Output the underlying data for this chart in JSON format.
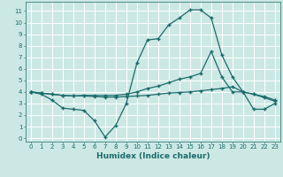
{
  "xlabel": "Humidex (Indice chaleur)",
  "bg_color": "#cce8e4",
  "grid_color": "#ffffff",
  "line_color": "#1a6b6b",
  "x_ticks": [
    0,
    1,
    2,
    3,
    4,
    5,
    6,
    7,
    8,
    9,
    10,
    11,
    12,
    13,
    14,
    15,
    16,
    17,
    18,
    19,
    20,
    21,
    22,
    23
  ],
  "y_ticks": [
    0,
    1,
    2,
    3,
    4,
    5,
    6,
    7,
    8,
    9,
    10,
    11
  ],
  "xlim": [
    -0.5,
    23.5
  ],
  "ylim": [
    -0.3,
    11.8
  ],
  "line1_x": [
    0,
    1,
    2,
    3,
    4,
    5,
    6,
    7,
    8,
    9,
    10,
    11,
    12,
    13,
    14,
    15,
    16,
    17,
    18,
    19,
    20,
    21,
    22,
    23
  ],
  "line1_y": [
    4.0,
    3.8,
    3.3,
    2.6,
    2.5,
    2.4,
    1.5,
    0.1,
    1.1,
    3.0,
    6.5,
    8.5,
    8.6,
    9.8,
    10.4,
    11.1,
    11.1,
    10.4,
    7.2,
    5.3,
    4.0,
    2.5,
    2.5,
    3.0
  ],
  "line2_x": [
    0,
    1,
    2,
    3,
    4,
    5,
    6,
    7,
    8,
    9,
    10,
    11,
    12,
    13,
    14,
    15,
    16,
    17,
    18,
    19,
    20,
    21,
    22,
    23
  ],
  "line2_y": [
    4.0,
    3.9,
    3.8,
    3.7,
    3.65,
    3.7,
    3.7,
    3.7,
    3.7,
    3.8,
    4.0,
    4.3,
    4.5,
    4.8,
    5.1,
    5.3,
    5.6,
    7.5,
    5.3,
    4.0,
    4.0,
    3.8,
    3.6,
    3.3
  ],
  "line3_x": [
    0,
    1,
    2,
    3,
    4,
    5,
    6,
    7,
    8,
    9,
    10,
    11,
    12,
    13,
    14,
    15,
    16,
    17,
    18,
    19,
    20,
    21,
    22,
    23
  ],
  "line3_y": [
    4.0,
    3.9,
    3.8,
    3.7,
    3.65,
    3.65,
    3.6,
    3.55,
    3.55,
    3.6,
    3.65,
    3.7,
    3.8,
    3.9,
    3.95,
    4.0,
    4.1,
    4.2,
    4.3,
    4.45,
    4.0,
    3.8,
    3.5,
    3.2
  ],
  "marker_size": 3,
  "line_width": 0.9
}
